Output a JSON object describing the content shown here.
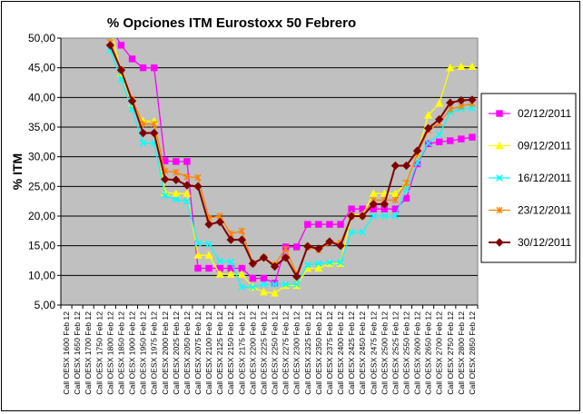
{
  "chart_data": {
    "type": "line",
    "title": "% Opciones ITM Eurostoxx 50 Febrero",
    "ylabel": "% ITM",
    "xlabel": "",
    "ylim": [
      5,
      50
    ],
    "yticks": [
      "5,00",
      "10,00",
      "15,00",
      "20,00",
      "25,00",
      "30,00",
      "35,00",
      "40,00",
      "45,00",
      "50,00"
    ],
    "grid": true,
    "plot_background": "#c0c0c0",
    "legend_position": "right",
    "categories": [
      "Call OESX 1600 Feb 12",
      "Call OESX 1650 Feb 12",
      "Call OESX 1700 Feb 12",
      "Call OESX 1750 Feb 12",
      "Call OESX 1800 Feb 12",
      "Call OESX 1850 Feb 12",
      "Call OESX 1900 Feb 12",
      "Call OESX 1950 Feb 12",
      "Call OESX 1975 Feb 12",
      "Call OESX 2000 Feb 12",
      "Call OESX 2025 Feb 12",
      "Call OESX 2050 Feb 12",
      "Call OESX 2075 Feb 12",
      "Call OESX 2100 Feb 12",
      "Call OESX 2125 Feb 12",
      "Call OESX 2150 Feb 12",
      "Call OESX 2175 Feb 12",
      "Call OESX 2200 Feb 12",
      "Call OESX 2225 Feb 12",
      "Call OESX 2250 Feb 12",
      "Call OESX 2275 Feb 12",
      "Call OESX 2300 Feb 12",
      "Call OESX 2325 Feb 12",
      "Call OESX 2350 Feb 12",
      "Call OESX 2375 Feb 12",
      "Call OESX 2400 Feb 12",
      "Call OESX 2425 Feb 12",
      "Call OESX 2450 Feb 12",
      "Call OESX 2475 Feb 12",
      "Call OESX 2500 Feb 12",
      "Call OESX 2525 Feb 12",
      "Call OESX 2550 Feb 12",
      "Call OESX 2600 Feb 12",
      "Call OESX 2650 Feb 12",
      "Call OESX 2700 Feb 12",
      "Call OESX 2750 Feb 12",
      "Call OESX 2800 Feb 12",
      "Call OESX 2850 Feb 12"
    ],
    "series": [
      {
        "name": "02/12/2011",
        "color": "#ff00ff",
        "marker": "square",
        "values": [
          null,
          null,
          null,
          null,
          52.0,
          48.8,
          46.5,
          45.0,
          45.0,
          29.3,
          29.2,
          29.2,
          11.2,
          11.2,
          11.2,
          11.2,
          11.2,
          9.5,
          9.5,
          8.7,
          14.8,
          14.8,
          18.6,
          18.6,
          18.6,
          18.6,
          21.2,
          21.2,
          21.2,
          21.2,
          21.2,
          23.0,
          28.8,
          32.2,
          32.5,
          32.7,
          33.0,
          33.3
        ]
      },
      {
        "name": "09/12/2011",
        "color": "#ffff00",
        "marker": "triangle",
        "values": [
          null,
          null,
          null,
          null,
          52.0,
          44.0,
          39.0,
          36.0,
          36.0,
          24.0,
          23.8,
          23.8,
          13.4,
          13.4,
          10.2,
          10.2,
          10.2,
          8.0,
          7.2,
          7.0,
          8.3,
          8.3,
          11.2,
          11.2,
          12.0,
          12.0,
          20.2,
          20.2,
          23.8,
          23.8,
          23.8,
          25.5,
          30.5,
          37.0,
          39.0,
          45.0,
          45.2,
          45.2
        ]
      },
      {
        "name": "16/12/2011",
        "color": "#00ffff",
        "marker": "x",
        "values": [
          null,
          null,
          null,
          null,
          48.0,
          43.0,
          38.0,
          32.3,
          32.3,
          23.4,
          22.8,
          22.5,
          15.4,
          15.3,
          12.4,
          12.3,
          8.0,
          8.0,
          8.5,
          8.5,
          8.5,
          8.5,
          11.8,
          12.0,
          12.2,
          12.2,
          17.3,
          17.3,
          20.0,
          20.0,
          20.0,
          24.6,
          29.0,
          32.3,
          33.7,
          37.5,
          38.1,
          38.2
        ]
      },
      {
        "name": "23/12/2011",
        "color": "#ff8000",
        "marker": "asterisk",
        "values": [
          null,
          null,
          null,
          null,
          49.3,
          44.7,
          39.7,
          35.5,
          35.5,
          27.6,
          27.4,
          26.6,
          26.5,
          19.7,
          20.0,
          17.0,
          17.5,
          12.0,
          13.0,
          11.8,
          14.5,
          10.2,
          14.8,
          14.3,
          15.5,
          15.5,
          20.0,
          20.0,
          22.7,
          22.7,
          22.7,
          25.6,
          30.5,
          34.5,
          35.7,
          38.0,
          38.5,
          39.0
        ]
      },
      {
        "name": "30/12/2011",
        "color": "#800000",
        "marker": "diamond",
        "values": [
          null,
          null,
          null,
          null,
          48.8,
          44.6,
          39.4,
          34.0,
          34.0,
          26.2,
          26.1,
          25.2,
          25.0,
          18.6,
          19.0,
          16.0,
          16.0,
          12.0,
          13.0,
          11.5,
          13.0,
          9.8,
          14.9,
          14.5,
          15.7,
          15.0,
          20.0,
          20.0,
          22.0,
          22.0,
          28.5,
          28.5,
          31.0,
          34.8,
          36.3,
          39.1,
          39.5,
          39.6
        ]
      }
    ]
  }
}
